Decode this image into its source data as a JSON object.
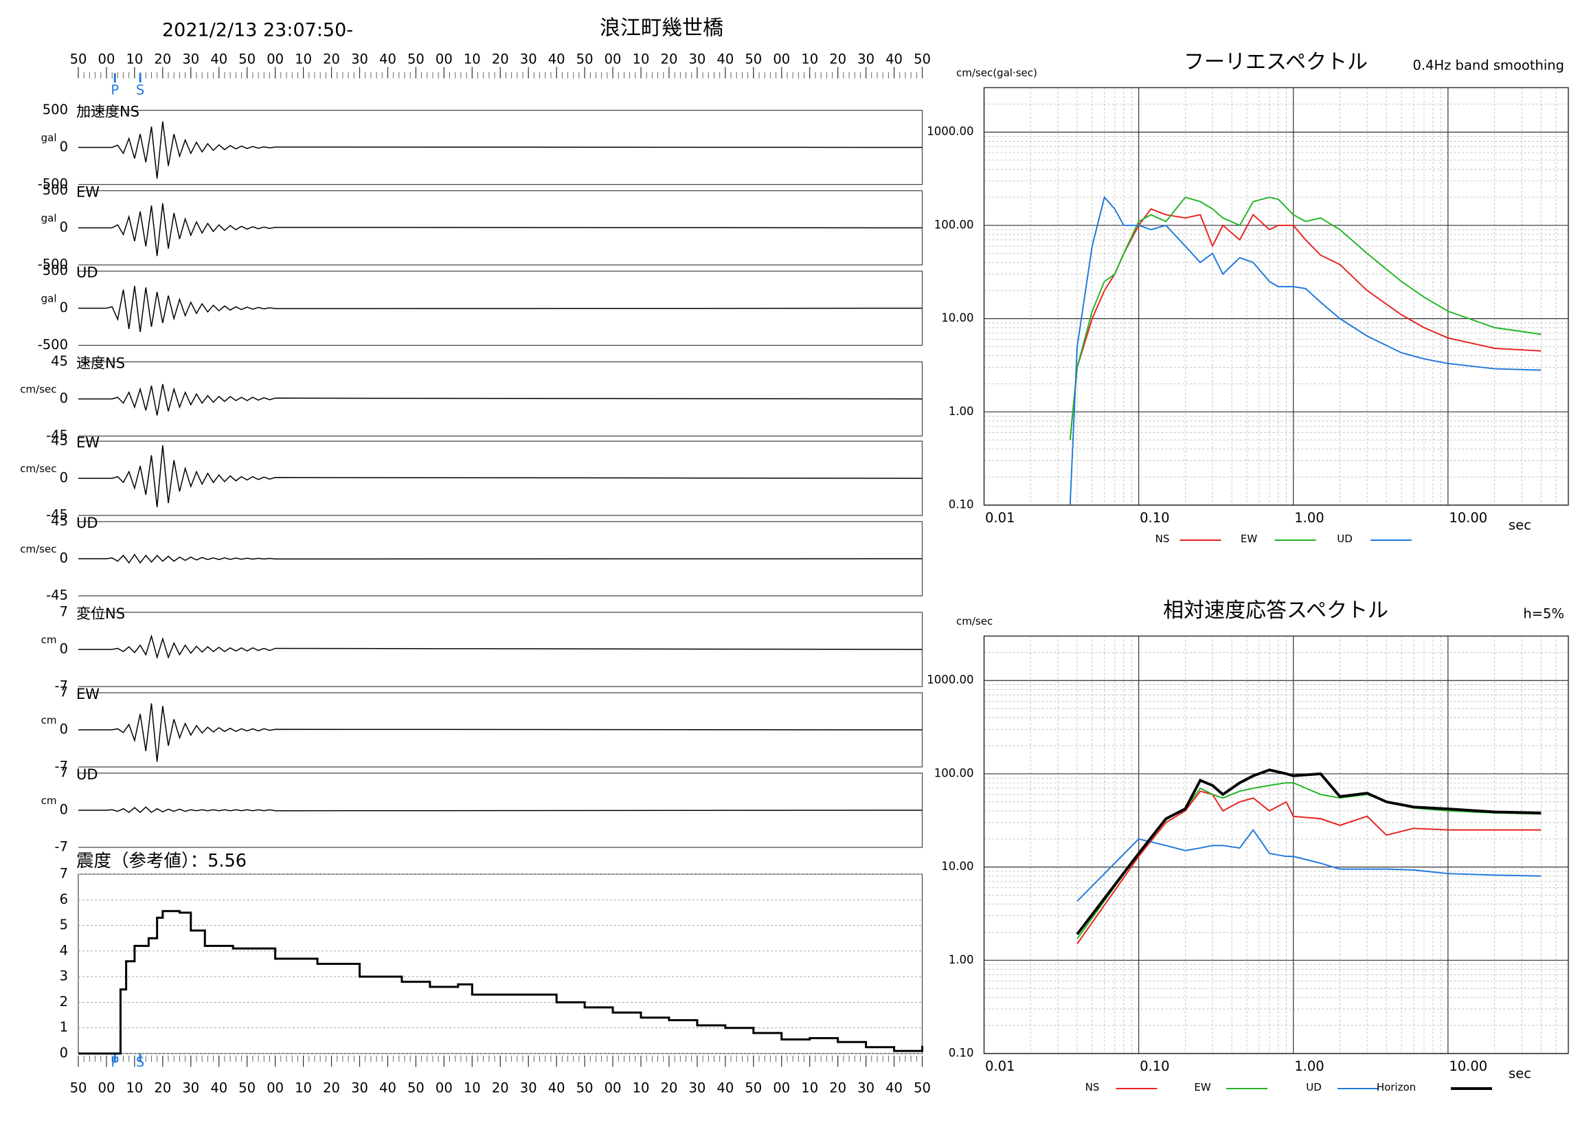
{
  "header": {
    "datetime": "2021/2/13 23:07:50-",
    "station": "浪江町幾世橋"
  },
  "chart_data": [
    {
      "type": "line",
      "label": "加速度NS",
      "unit": "gal",
      "ylim": [
        -500,
        500
      ],
      "yticks": [
        500,
        0,
        -500
      ],
      "x": [
        0,
        10,
        12,
        14,
        16,
        18,
        20,
        22,
        24,
        26,
        28,
        30,
        32,
        34,
        36,
        38,
        40,
        42,
        44,
        46,
        48,
        50,
        52,
        54,
        56,
        58,
        60,
        62,
        64,
        66,
        68,
        70,
        300
      ],
      "values": [
        0,
        0,
        0,
        30,
        -80,
        120,
        -150,
        180,
        -200,
        280,
        -420,
        350,
        -250,
        180,
        -120,
        100,
        -80,
        70,
        -60,
        50,
        -40,
        35,
        -30,
        25,
        -20,
        18,
        -15,
        12,
        -10,
        8,
        -6,
        5,
        0
      ]
    },
    {
      "type": "line",
      "label": "EW",
      "unit": "gal",
      "ylim": [
        -500,
        500
      ],
      "yticks": [
        500,
        0,
        -500
      ],
      "x": [
        0,
        10,
        12,
        14,
        16,
        18,
        20,
        22,
        24,
        26,
        28,
        30,
        32,
        34,
        36,
        38,
        40,
        42,
        44,
        46,
        48,
        50,
        52,
        54,
        56,
        58,
        60,
        62,
        64,
        66,
        68,
        70,
        300
      ],
      "values": [
        0,
        0,
        0,
        40,
        -90,
        150,
        -180,
        220,
        -250,
        300,
        -380,
        330,
        -280,
        200,
        -150,
        120,
        -100,
        80,
        -70,
        60,
        -50,
        40,
        -35,
        30,
        -25,
        20,
        -18,
        15,
        -12,
        10,
        -8,
        6,
        0
      ]
    },
    {
      "type": "line",
      "label": "UD",
      "unit": "gal",
      "ylim": [
        -500,
        500
      ],
      "yticks": [
        500,
        0,
        -500
      ],
      "x": [
        0,
        10,
        12,
        14,
        16,
        18,
        20,
        22,
        24,
        26,
        28,
        30,
        32,
        34,
        36,
        38,
        40,
        42,
        44,
        46,
        48,
        50,
        52,
        54,
        56,
        58,
        60,
        62,
        64,
        66,
        68,
        70,
        300
      ],
      "values": [
        0,
        0,
        20,
        -150,
        250,
        -280,
        300,
        -320,
        280,
        -250,
        220,
        -200,
        170,
        -140,
        120,
        -100,
        80,
        -70,
        60,
        -50,
        40,
        -35,
        30,
        -25,
        20,
        -18,
        15,
        -12,
        10,
        -8,
        6,
        -5,
        0
      ]
    },
    {
      "type": "line",
      "label": "速度NS",
      "unit": "cm/sec",
      "ylim": [
        -45,
        45
      ],
      "yticks": [
        45,
        0,
        -45
      ],
      "x": [
        0,
        10,
        12,
        14,
        16,
        18,
        20,
        22,
        24,
        26,
        28,
        30,
        32,
        34,
        36,
        38,
        40,
        42,
        44,
        46,
        48,
        50,
        52,
        54,
        56,
        58,
        60,
        62,
        64,
        66,
        68,
        70,
        300
      ],
      "values": [
        0,
        0,
        0,
        2,
        -5,
        8,
        -10,
        12,
        -14,
        16,
        -20,
        18,
        -15,
        12,
        -10,
        8,
        -7,
        6,
        -5,
        4,
        -4,
        3,
        -3,
        3,
        -2,
        2,
        -2,
        2,
        -1.5,
        1.5,
        -1,
        1,
        0
      ]
    },
    {
      "type": "line",
      "label": "EW",
      "unit": "cm/sec",
      "ylim": [
        -45,
        45
      ],
      "yticks": [
        45,
        0,
        -45
      ],
      "x": [
        0,
        10,
        12,
        14,
        16,
        18,
        20,
        22,
        24,
        26,
        28,
        30,
        32,
        34,
        36,
        38,
        40,
        42,
        44,
        46,
        48,
        50,
        52,
        54,
        56,
        58,
        60,
        62,
        64,
        66,
        68,
        70,
        300
      ],
      "values": [
        0,
        0,
        0,
        2,
        -5,
        8,
        -12,
        15,
        -20,
        28,
        -35,
        40,
        -30,
        22,
        -16,
        12,
        -10,
        8,
        -7,
        6,
        -5,
        4,
        -4,
        3,
        -3,
        2,
        -2,
        2,
        -1.5,
        1.5,
        -1,
        1,
        0
      ]
    },
    {
      "type": "line",
      "label": "UD",
      "unit": "cm/sec",
      "ylim": [
        -45,
        45
      ],
      "yticks": [
        45,
        0,
        -45
      ],
      "x": [
        0,
        10,
        12,
        14,
        16,
        18,
        20,
        22,
        24,
        26,
        28,
        30,
        32,
        34,
        36,
        38,
        40,
        42,
        44,
        46,
        48,
        50,
        52,
        54,
        56,
        58,
        60,
        62,
        64,
        66,
        68,
        70,
        300
      ],
      "values": [
        0,
        0,
        1,
        -3,
        4,
        -5,
        5,
        -5,
        4,
        -4,
        4,
        -3,
        3,
        -3,
        2,
        -2,
        2,
        -1.5,
        1.5,
        -1,
        1,
        -1,
        1,
        -0.8,
        0.8,
        -0.6,
        0.6,
        -0.5,
        0.5,
        -0.4,
        0.4,
        -0.3,
        0
      ]
    },
    {
      "type": "line",
      "label": "変位NS",
      "unit": "cm",
      "ylim": [
        -7,
        7
      ],
      "yticks": [
        7,
        0,
        -7
      ],
      "x": [
        0,
        10,
        12,
        14,
        16,
        18,
        20,
        22,
        24,
        26,
        28,
        30,
        32,
        34,
        36,
        38,
        40,
        42,
        44,
        46,
        48,
        50,
        52,
        54,
        56,
        58,
        60,
        62,
        64,
        66,
        68,
        70,
        300
      ],
      "values": [
        0,
        0,
        0,
        0.2,
        -0.4,
        0.5,
        -0.6,
        0.8,
        -1,
        2.5,
        -1.5,
        2,
        -1.5,
        1.2,
        -1,
        0.8,
        -0.7,
        0.6,
        -0.5,
        0.5,
        -0.4,
        0.4,
        -0.4,
        0.3,
        -0.3,
        0.3,
        -0.3,
        0.3,
        -0.2,
        0.2,
        -0.2,
        0.2,
        0
      ]
    },
    {
      "type": "line",
      "label": "EW",
      "unit": "cm",
      "ylim": [
        -7,
        7
      ],
      "yticks": [
        7,
        0,
        -7
      ],
      "x": [
        0,
        10,
        12,
        14,
        16,
        18,
        20,
        22,
        24,
        26,
        28,
        30,
        32,
        34,
        36,
        38,
        40,
        42,
        44,
        46,
        48,
        50,
        52,
        54,
        56,
        58,
        60,
        62,
        64,
        66,
        68,
        70,
        300
      ],
      "values": [
        0,
        0,
        0,
        0.2,
        -0.5,
        1,
        -2,
        3,
        -4,
        5,
        -6,
        4.5,
        -3,
        2,
        -1.5,
        1.2,
        -1,
        0.8,
        -0.6,
        0.5,
        -0.4,
        0.4,
        -0.3,
        0.3,
        -0.3,
        0.2,
        -0.2,
        0.2,
        -0.2,
        0.2,
        -0.1,
        0.1,
        0
      ]
    },
    {
      "type": "line",
      "label": "UD",
      "unit": "cm",
      "ylim": [
        -7,
        7
      ],
      "yticks": [
        7,
        0,
        -7
      ],
      "x": [
        0,
        10,
        12,
        14,
        16,
        18,
        20,
        22,
        24,
        26,
        28,
        30,
        32,
        34,
        36,
        38,
        40,
        42,
        44,
        46,
        48,
        50,
        52,
        54,
        56,
        58,
        60,
        62,
        64,
        66,
        68,
        70,
        300
      ],
      "values": [
        0,
        0,
        0.1,
        -0.2,
        0.3,
        -0.4,
        0.5,
        -0.4,
        0.6,
        -0.4,
        0.3,
        -0.3,
        0.2,
        -0.2,
        0.2,
        -0.2,
        0.1,
        -0.1,
        0.1,
        -0.1,
        0.1,
        -0.1,
        0.1,
        -0.1,
        0.1,
        -0.1,
        0.1,
        -0.1,
        0.1,
        -0.1,
        0.1,
        -0.1,
        0
      ]
    },
    {
      "type": "step",
      "title": "震度（参考値）：5.56",
      "xlim": [
        0,
        300
      ],
      "xticks": [
        {
          "value": 0,
          "label": "50"
        },
        {
          "value": 10,
          "label": "00"
        },
        {
          "value": 20,
          "label": "10"
        },
        {
          "value": 30,
          "label": "20"
        },
        {
          "value": 40,
          "label": "30"
        },
        {
          "value": 50,
          "label": "40"
        },
        {
          "value": 60,
          "label": "50"
        },
        {
          "value": 70,
          "label": "00"
        },
        {
          "value": 80,
          "label": "10"
        },
        {
          "value": 90,
          "label": "20"
        },
        {
          "value": 100,
          "label": "30"
        },
        {
          "value": 110,
          "label": "40"
        },
        {
          "value": 120,
          "label": "50"
        },
        {
          "value": 130,
          "label": "00"
        },
        {
          "value": 140,
          "label": "10"
        },
        {
          "value": 150,
          "label": "20"
        },
        {
          "value": 160,
          "label": "30"
        },
        {
          "value": 170,
          "label": "40"
        },
        {
          "value": 180,
          "label": "50"
        },
        {
          "value": 190,
          "label": "00"
        },
        {
          "value": 200,
          "label": "10"
        },
        {
          "value": 210,
          "label": "20"
        },
        {
          "value": 220,
          "label": "30"
        },
        {
          "value": 230,
          "label": "40"
        },
        {
          "value": 240,
          "label": "50"
        },
        {
          "value": 250,
          "label": "00"
        },
        {
          "value": 260,
          "label": "10"
        },
        {
          "value": 270,
          "label": "20"
        },
        {
          "value": 280,
          "label": "30"
        },
        {
          "value": 290,
          "label": "40"
        },
        {
          "value": 300,
          "label": "50"
        }
      ],
      "phases": [
        {
          "label": "P",
          "value": 13
        },
        {
          "label": "S",
          "value": 22
        }
      ],
      "ylim": [
        0,
        7
      ],
      "yticks": [
        0,
        1,
        2,
        3,
        4,
        5,
        6,
        7
      ],
      "grid": true,
      "x": [
        0,
        14,
        15,
        17,
        20,
        25,
        28,
        30,
        36,
        40,
        45,
        55,
        70,
        85,
        100,
        115,
        125,
        135,
        140,
        150,
        160,
        170,
        180,
        190,
        200,
        210,
        220,
        230,
        240,
        250,
        260,
        270,
        280,
        290,
        300
      ],
      "values": [
        0,
        0,
        2.5,
        3.6,
        4.2,
        4.5,
        5.3,
        5.56,
        5.5,
        4.8,
        4.2,
        4.1,
        3.7,
        3.5,
        3.0,
        2.8,
        2.6,
        2.7,
        2.3,
        2.3,
        2.3,
        2.0,
        1.8,
        1.6,
        1.4,
        1.3,
        1.1,
        1.0,
        0.8,
        0.55,
        0.6,
        0.45,
        0.25,
        0.1,
        0.3
      ]
    },
    {
      "type": "line",
      "title": "フーリエスペクトル",
      "subtitle": "0.4Hz band smoothing",
      "y_label": "cm/sec(gal·sec)",
      "x_label": "sec",
      "log_scale": true,
      "grid": true,
      "xlim": [
        0.01,
        60
      ],
      "ylim": [
        0.1,
        3000
      ],
      "xticks": [
        0.01,
        {
          "value": 0.1,
          "label": "0.10"
        },
        {
          "value": 1,
          "label": "1.00"
        },
        {
          "value": 10,
          "label": "10.00"
        }
      ],
      "yticks": [
        {
          "value": 0.1,
          "label": "0.10"
        },
        {
          "value": 1,
          "label": "1.00"
        },
        {
          "value": 10,
          "label": "10.00"
        },
        {
          "value": 100,
          "label": "100.00"
        },
        {
          "value": 1000,
          "label": "1000.00"
        }
      ],
      "x": [
        0.036,
        0.04,
        0.05,
        0.06,
        0.07,
        0.08,
        0.1,
        0.12,
        0.15,
        0.2,
        0.25,
        0.3,
        0.35,
        0.45,
        0.55,
        0.7,
        0.8,
        1.0,
        1.2,
        1.5,
        2,
        3,
        5,
        7,
        10,
        20,
        40
      ],
      "series": [
        {
          "name": "NS",
          "color": "#e8201e",
          "values": [
            0.5,
            3,
            10,
            20,
            30,
            50,
            100,
            150,
            130,
            120,
            130,
            60,
            100,
            70,
            130,
            90,
            100,
            100,
            70,
            48,
            38,
            20,
            11,
            8,
            6.2,
            4.8,
            4.5
          ]
        },
        {
          "name": "EW",
          "color": "#22b422",
          "values": [
            0.5,
            3,
            12,
            25,
            30,
            50,
            110,
            130,
            110,
            200,
            180,
            150,
            120,
            100,
            180,
            200,
            190,
            130,
            110,
            120,
            90,
            50,
            25,
            17,
            12,
            8,
            6.8
          ]
        },
        {
          "name": "UD",
          "color": "#1e78dc",
          "values": [
            0.1,
            5,
            60,
            200,
            150,
            100,
            100,
            90,
            100,
            60,
            40,
            50,
            30,
            45,
            40,
            25,
            22,
            22,
            21,
            15,
            10,
            6.5,
            4.3,
            3.7,
            3.3,
            2.9,
            2.8
          ]
        }
      ]
    },
    {
      "type": "line",
      "title": "相対速度応答スペクトル",
      "subtitle": "h=5%",
      "y_label": "cm/sec",
      "x_label": "sec",
      "log_scale": true,
      "grid": true,
      "xlim": [
        0.01,
        60
      ],
      "ylim": [
        0.1,
        3000
      ],
      "xticks": [
        0.01,
        {
          "value": 0.1,
          "label": "0.10"
        },
        {
          "value": 1,
          "label": "1.00"
        },
        {
          "value": 10,
          "label": "10.00"
        }
      ],
      "yticks": [
        {
          "value": 0.1,
          "label": "0.10"
        },
        {
          "value": 1,
          "label": "1.00"
        },
        {
          "value": 10,
          "label": "10.00"
        },
        {
          "value": 100,
          "label": "100.00"
        },
        {
          "value": 1000,
          "label": "1000.00"
        }
      ],
      "x": [
        0.04,
        0.1,
        0.15,
        0.2,
        0.25,
        0.3,
        0.35,
        0.45,
        0.55,
        0.7,
        0.9,
        1.0,
        1.5,
        2,
        3,
        4,
        6,
        10,
        20,
        40
      ],
      "series": [
        {
          "name": "NS",
          "color": "#e8201e",
          "values": [
            1.5,
            13,
            30,
            40,
            65,
            60,
            40,
            50,
            55,
            40,
            50,
            35,
            33,
            28,
            35,
            22,
            26,
            25,
            25,
            25
          ]
        },
        {
          "name": "EW",
          "color": "#22b422",
          "values": [
            1.7,
            14,
            32,
            42,
            70,
            60,
            55,
            65,
            70,
            75,
            80,
            80,
            60,
            55,
            60,
            50,
            43,
            40,
            38,
            37
          ]
        },
        {
          "name": "UD",
          "color": "#1e78dc",
          "values": [
            4.3,
            20,
            17,
            15,
            16,
            17,
            17,
            16,
            25,
            14,
            13,
            13,
            11,
            9.5,
            9.5,
            9.5,
            9.3,
            8.5,
            8.2,
            8
          ]
        },
        {
          "name": "Horizon",
          "color": "#000000",
          "values": [
            1.9,
            14,
            33,
            42,
            85,
            75,
            60,
            80,
            95,
            110,
            100,
            95,
            100,
            57,
            62,
            50,
            44,
            42,
            39,
            38
          ]
        }
      ]
    }
  ]
}
